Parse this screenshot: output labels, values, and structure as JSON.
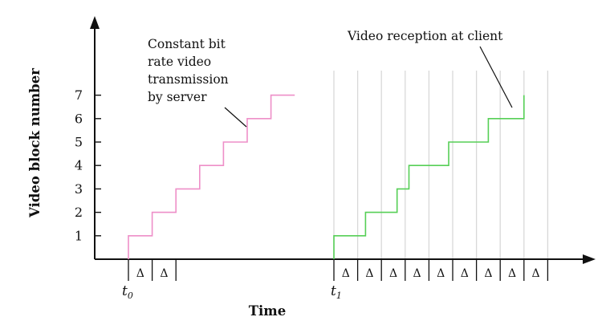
{
  "axes": {
    "y_title": "Video block number",
    "x_title": "Time",
    "y_ticks": [
      "1",
      "2",
      "3",
      "4",
      "5",
      "6",
      "7"
    ]
  },
  "annotations": {
    "server_lines": [
      "Constant bit",
      "rate video",
      "transmission",
      "by server"
    ],
    "client": "Video reception at client"
  },
  "markers": {
    "t0": {
      "base": "t",
      "sub": "0"
    },
    "t1": {
      "base": "t",
      "sub": "1"
    },
    "delta": "Δ"
  },
  "colors": {
    "server": "#ee8fc8",
    "client": "#56cf56",
    "grid": "#d8d8d8",
    "axis": "#111111"
  },
  "chart_data": {
    "type": "line",
    "title": "",
    "xlabel": "Time",
    "ylabel": "Video block number",
    "ylim": [
      0,
      7
    ],
    "series": [
      {
        "name": "Constant bit rate video transmission by server",
        "steps": [
          {
            "block": 1,
            "duration_delta": 1
          },
          {
            "block": 2,
            "duration_delta": 1
          },
          {
            "block": 3,
            "duration_delta": 1
          },
          {
            "block": 4,
            "duration_delta": 1
          },
          {
            "block": 5,
            "duration_delta": 1
          },
          {
            "block": 6,
            "duration_delta": 1
          },
          {
            "block": 7,
            "duration_delta": 1
          }
        ]
      },
      {
        "name": "Video reception at client",
        "steps": [
          {
            "block": 1,
            "duration_delta": 1.33
          },
          {
            "block": 2,
            "duration_delta": 1.33
          },
          {
            "block": 3,
            "duration_delta": 0.5
          },
          {
            "block": 4,
            "duration_delta": 1.67
          },
          {
            "block": 5,
            "duration_delta": 1.67
          },
          {
            "block": 6,
            "duration_delta": 1.5
          },
          {
            "block": 7,
            "duration_delta": 0
          }
        ]
      }
    ],
    "delta_intervals_after_t0": 2,
    "delta_intervals_after_t1": 9
  }
}
